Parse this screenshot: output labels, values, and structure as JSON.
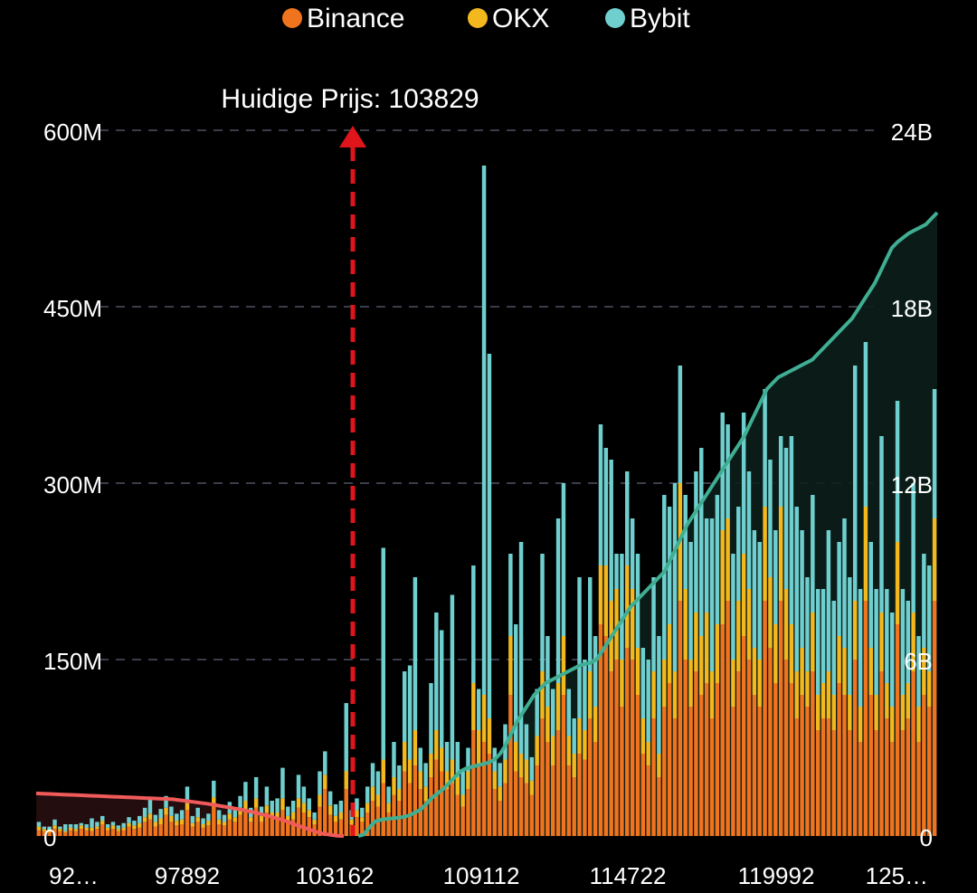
{
  "colors": {
    "background": "#000000",
    "binance": "#f0741e",
    "okx": "#f2b81d",
    "bybit": "#6fcfcf",
    "short_cumulative": "#f05a5a",
    "long_cumulative": "#3fae93",
    "current_price_marker": "#e0141b",
    "grid": "#3a3d4a"
  },
  "legend": [
    {
      "name": "Binance",
      "color": "#f0741e"
    },
    {
      "name": "OKX",
      "color": "#f2b81d"
    },
    {
      "name": "Bybit",
      "color": "#6fcfcf"
    }
  ],
  "current_price": {
    "label": "Huidige Prijs: 103829",
    "value": 103829
  },
  "y_left_ticks": [
    "600M",
    "450M",
    "300M",
    "150M",
    "0"
  ],
  "y_right_ticks": [
    "24B",
    "18B",
    "12B",
    "6B",
    "0"
  ],
  "x_ticks": [
    "92…",
    "97892",
    "103162",
    "109112",
    "114722",
    "119992",
    "125…"
  ],
  "chart_data": {
    "type": "bar",
    "stacked": true,
    "series_names": [
      "Binance",
      "OKX",
      "Bybit"
    ],
    "ylim_left": [
      0,
      600000000
    ],
    "ylim_right": [
      0,
      24000000000
    ],
    "grid": "dashed horizontal",
    "legend_position": "top",
    "x_tick_labels": [
      "92…",
      "97892",
      "103162",
      "109112",
      "114722",
      "119992",
      "125…"
    ],
    "current_price": 103829,
    "bars_millions": [
      [
        5,
        3,
        4
      ],
      [
        4,
        2,
        2
      ],
      [
        3,
        2,
        3
      ],
      [
        6,
        3,
        5
      ],
      [
        4,
        2,
        2
      ],
      [
        3,
        1,
        6
      ],
      [
        5,
        2,
        3
      ],
      [
        4,
        2,
        4
      ],
      [
        6,
        3,
        2
      ],
      [
        5,
        2,
        3
      ],
      [
        4,
        3,
        8
      ],
      [
        6,
        2,
        4
      ],
      [
        10,
        3,
        4
      ],
      [
        5,
        2,
        3
      ],
      [
        6,
        3,
        3
      ],
      [
        4,
        2,
        3
      ],
      [
        5,
        2,
        4
      ],
      [
        8,
        3,
        5
      ],
      [
        6,
        3,
        4
      ],
      [
        7,
        4,
        6
      ],
      [
        12,
        4,
        8
      ],
      [
        14,
        5,
        12
      ],
      [
        8,
        4,
        6
      ],
      [
        10,
        5,
        8
      ],
      [
        18,
        6,
        10
      ],
      [
        12,
        5,
        8
      ],
      [
        9,
        4,
        6
      ],
      [
        10,
        4,
        8
      ],
      [
        22,
        6,
        14
      ],
      [
        8,
        3,
        6
      ],
      [
        12,
        4,
        8
      ],
      [
        7,
        3,
        5
      ],
      [
        9,
        4,
        6
      ],
      [
        25,
        8,
        14
      ],
      [
        10,
        4,
        8
      ],
      [
        9,
        3,
        6
      ],
      [
        14,
        5,
        10
      ],
      [
        12,
        4,
        8
      ],
      [
        18,
        6,
        10
      ],
      [
        22,
        8,
        16
      ],
      [
        12,
        4,
        8
      ],
      [
        24,
        8,
        18
      ],
      [
        12,
        5,
        8
      ],
      [
        20,
        6,
        16
      ],
      [
        15,
        5,
        10
      ],
      [
        14,
        6,
        12
      ],
      [
        22,
        10,
        26
      ],
      [
        12,
        5,
        8
      ],
      [
        14,
        6,
        10
      ],
      [
        24,
        8,
        20
      ],
      [
        20,
        8,
        14
      ],
      [
        16,
        6,
        10
      ],
      [
        10,
        4,
        6
      ],
      [
        25,
        10,
        20
      ],
      [
        40,
        12,
        20
      ],
      [
        18,
        8,
        12
      ],
      [
        12,
        5,
        10
      ],
      [
        14,
        6,
        10
      ],
      [
        40,
        15,
        58
      ],
      [
        10,
        4,
        8
      ],
      [
        16,
        6,
        10
      ],
      [
        12,
        4,
        8
      ],
      [
        20,
        8,
        14
      ],
      [
        30,
        12,
        20
      ],
      [
        25,
        10,
        20
      ],
      [
        45,
        20,
        180
      ],
      [
        20,
        8,
        14
      ],
      [
        35,
        15,
        30
      ],
      [
        30,
        10,
        20
      ],
      [
        55,
        25,
        60
      ],
      [
        45,
        20,
        80
      ],
      [
        60,
        30,
        130
      ],
      [
        40,
        15,
        20
      ],
      [
        30,
        12,
        20
      ],
      [
        50,
        20,
        60
      ],
      [
        65,
        25,
        100
      ],
      [
        55,
        20,
        100
      ],
      [
        40,
        15,
        25
      ],
      [
        45,
        20,
        140
      ],
      [
        35,
        15,
        30
      ],
      [
        25,
        10,
        20
      ],
      [
        40,
        15,
        20
      ],
      [
        90,
        40,
        100
      ],
      [
        60,
        30,
        35
      ],
      [
        80,
        40,
        450
      ],
      [
        70,
        30,
        310
      ],
      [
        40,
        15,
        20
      ],
      [
        30,
        12,
        20
      ],
      [
        45,
        20,
        30
      ],
      [
        120,
        50,
        70
      ],
      [
        55,
        25,
        100
      ],
      [
        50,
        20,
        180
      ],
      [
        45,
        20,
        30
      ],
      [
        35,
        12,
        20
      ],
      [
        60,
        25,
        40
      ],
      [
        100,
        40,
        100
      ],
      [
        80,
        30,
        60
      ],
      [
        60,
        25,
        40
      ],
      [
        90,
        40,
        140
      ],
      [
        120,
        50,
        130
      ],
      [
        60,
        25,
        40
      ],
      [
        50,
        20,
        30
      ],
      [
        70,
        30,
        120
      ],
      [
        65,
        25,
        60
      ],
      [
        100,
        40,
        80
      ],
      [
        80,
        30,
        60
      ],
      [
        180,
        50,
        120
      ],
      [
        170,
        60,
        100
      ],
      [
        140,
        60,
        120
      ],
      [
        150,
        60,
        30
      ],
      [
        110,
        40,
        90
      ],
      [
        160,
        70,
        80
      ],
      [
        150,
        60,
        60
      ],
      [
        120,
        40,
        80
      ],
      [
        70,
        30,
        60
      ],
      [
        60,
        20,
        70
      ],
      [
        100,
        40,
        80
      ],
      [
        50,
        20,
        100
      ],
      [
        110,
        40,
        140
      ],
      [
        130,
        50,
        100
      ],
      [
        100,
        40,
        160
      ],
      [
        200,
        100,
        100
      ],
      [
        150,
        60,
        80
      ],
      [
        110,
        40,
        100
      ],
      [
        140,
        50,
        120
      ],
      [
        120,
        50,
        160
      ],
      [
        130,
        60,
        80
      ],
      [
        100,
        40,
        130
      ],
      [
        130,
        50,
        110
      ],
      [
        180,
        80,
        100
      ],
      [
        200,
        70,
        80
      ],
      [
        110,
        40,
        90
      ],
      [
        140,
        60,
        80
      ],
      [
        170,
        70,
        120
      ],
      [
        150,
        60,
        100
      ],
      [
        120,
        40,
        100
      ],
      [
        110,
        40,
        100
      ],
      [
        200,
        80,
        100
      ],
      [
        160,
        60,
        100
      ],
      [
        130,
        50,
        80
      ],
      [
        200,
        80,
        60
      ],
      [
        150,
        60,
        120
      ],
      [
        130,
        50,
        160
      ],
      [
        100,
        40,
        140
      ],
      [
        120,
        40,
        100
      ],
      [
        110,
        30,
        80
      ],
      [
        140,
        50,
        100
      ],
      [
        90,
        30,
        90
      ],
      [
        100,
        30,
        80
      ],
      [
        100,
        40,
        120
      ],
      [
        90,
        30,
        80
      ],
      [
        130,
        40,
        80
      ],
      [
        120,
        40,
        110
      ],
      [
        90,
        30,
        100
      ],
      [
        150,
        50,
        200
      ],
      [
        80,
        30,
        100
      ],
      [
        200,
        80,
        140
      ],
      [
        120,
        40,
        90
      ],
      [
        90,
        30,
        90
      ],
      [
        140,
        50,
        150
      ],
      [
        100,
        30,
        80
      ],
      [
        80,
        30,
        80
      ],
      [
        180,
        70,
        120
      ],
      [
        90,
        30,
        90
      ],
      [
        100,
        30,
        70
      ],
      [
        140,
        50,
        110
      ],
      [
        80,
        30,
        60
      ],
      [
        120,
        40,
        80
      ],
      [
        110,
        30,
        90
      ],
      [
        200,
        70,
        110
      ]
    ],
    "cumulative_short_billions": [
      1.45,
      1.44,
      1.43,
      1.42,
      1.41,
      1.4,
      1.39,
      1.38,
      1.37,
      1.36,
      1.35,
      1.34,
      1.33,
      1.32,
      1.31,
      1.3,
      1.29,
      1.28,
      1.27,
      1.26,
      1.25,
      1.22,
      1.19,
      1.16,
      1.13,
      1.1,
      1.06,
      1.02,
      0.98,
      0.94,
      0.9,
      0.85,
      0.8,
      0.74,
      0.68,
      0.62,
      0.55,
      0.47,
      0.38,
      0.3,
      0.22,
      0.14,
      0.08,
      0.04,
      0.01,
      0.0
    ],
    "cumulative_long_billions": [
      0.0,
      0.05,
      0.3,
      0.5,
      0.55,
      0.58,
      0.6,
      0.62,
      0.65,
      0.7,
      0.8,
      0.9,
      1.1,
      1.3,
      1.45,
      1.6,
      1.8,
      2.0,
      2.2,
      2.3,
      2.35,
      2.4,
      2.45,
      2.5,
      2.6,
      2.8,
      3.1,
      3.5,
      3.9,
      4.2,
      4.5,
      4.8,
      5.0,
      5.2,
      5.3,
      5.4,
      5.5,
      5.6,
      5.7,
      5.8,
      5.85,
      5.9,
      6.0,
      6.3,
      6.6,
      6.9,
      7.2,
      7.5,
      7.8,
      8.0,
      8.2,
      8.4,
      8.6,
      8.8,
      9.0,
      9.4,
      9.8,
      10.2,
      10.6,
      10.9,
      11.2,
      11.5,
      11.8,
      12.1,
      12.4,
      12.7,
      13.0,
      13.3,
      13.6,
      14.0,
      14.4,
      14.8,
      15.2,
      15.4,
      15.6,
      15.7,
      15.8,
      15.9,
      16.0,
      16.1,
      16.2,
      16.4,
      16.6,
      16.8,
      17.0,
      17.2,
      17.4,
      17.6,
      17.9,
      18.2,
      18.5,
      18.8,
      19.2,
      19.6,
      20.0,
      20.2,
      20.35,
      20.5,
      20.6,
      20.7,
      20.8,
      21.0,
      21.2
    ]
  }
}
